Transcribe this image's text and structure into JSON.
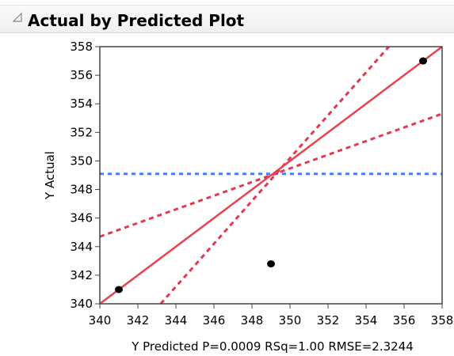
{
  "report": {
    "title": "Actual by Predicted Plot"
  },
  "icons": {
    "disclosure": "disclosure-triangle-icon"
  },
  "chart_data": {
    "type": "scatter",
    "title": "",
    "xlabel": "Y Predicted P=0.0009 RSq=1.00 RMSE=2.3244",
    "ylabel": "Y Actual",
    "xlim": [
      340,
      358
    ],
    "ylim": [
      340,
      358
    ],
    "xticks": [
      340,
      342,
      344,
      346,
      348,
      350,
      352,
      354,
      356,
      358
    ],
    "yticks": [
      340,
      342,
      344,
      346,
      348,
      350,
      352,
      354,
      356,
      358
    ],
    "grid": false,
    "points": [
      {
        "x": 341.0,
        "y": 341.0
      },
      {
        "x": 349.0,
        "y": 342.8
      },
      {
        "x": 357.0,
        "y": 357.0
      }
    ],
    "fit_line": {
      "x1": 340,
      "y1": 340,
      "x2": 358,
      "y2": 358
    },
    "mean_line": {
      "y": 349.1
    },
    "confidence_curves": [
      {
        "x1": 343.2,
        "y1": 340,
        "x2": 355.2,
        "y2": 358
      },
      {
        "x1": 340,
        "y1": 344.7,
        "x2": 358,
        "y2": 353.3
      }
    ],
    "colors": {
      "fit": "#e8434d",
      "confidence": "#e03a52",
      "mean": "#4d7cf5",
      "points": "#000000",
      "frame": "#444444"
    }
  }
}
